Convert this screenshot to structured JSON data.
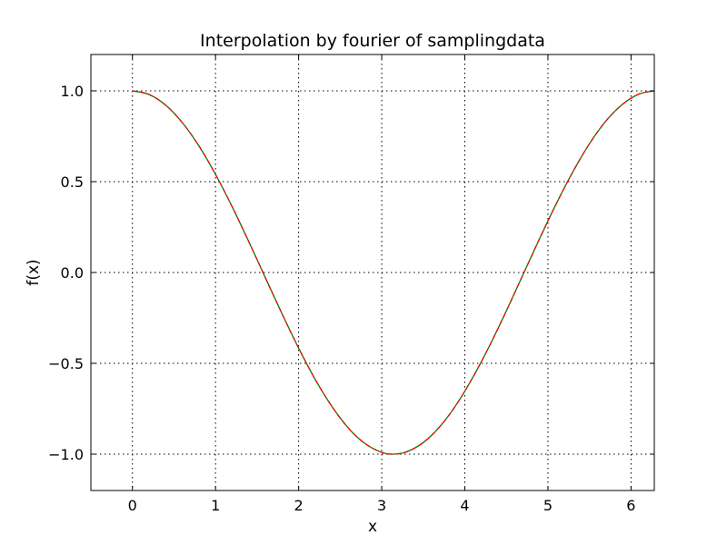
{
  "chart_data": {
    "type": "line",
    "title": "Interpolation by fourier of samplingdata",
    "xlabel": "x",
    "ylabel": "f(x)",
    "xlim": [
      -0.5,
      6.28
    ],
    "ylim": [
      -1.2,
      1.2
    ],
    "xticks": [
      0,
      1,
      2,
      3,
      4,
      5,
      6
    ],
    "xtick_labels": [
      "0",
      "1",
      "2",
      "3",
      "4",
      "5",
      "6"
    ],
    "yticks": [
      -1.0,
      -0.5,
      0.0,
      0.5,
      1.0
    ],
    "ytick_labels": [
      "−1.0",
      "−0.5",
      "0.0",
      "0.5",
      "1.0"
    ],
    "grid": true,
    "series": [
      {
        "color": "#007f00",
        "style": "solid",
        "x": [
          0.0,
          0.2,
          0.4,
          0.6,
          0.8,
          1.0,
          1.2,
          1.4,
          1.6,
          1.8,
          2.0,
          2.2,
          2.4,
          2.6,
          2.8,
          3.0,
          3.14,
          3.3,
          3.5,
          3.7,
          3.9,
          4.1,
          4.3,
          4.5,
          4.7,
          4.9,
          5.1,
          5.3,
          5.5,
          5.7,
          5.9,
          6.1,
          6.28
        ],
        "y": [
          1.0,
          0.98,
          0.921,
          0.825,
          0.697,
          0.54,
          0.362,
          0.17,
          -0.029,
          -0.227,
          -0.416,
          -0.589,
          -0.737,
          -0.857,
          -0.942,
          -0.99,
          -1.0,
          -0.987,
          -0.936,
          -0.848,
          -0.726,
          -0.574,
          -0.401,
          -0.211,
          -0.012,
          0.187,
          0.378,
          0.554,
          0.709,
          0.835,
          0.927,
          0.983,
          1.0
        ]
      },
      {
        "color": "#ff0000",
        "style": "dashed",
        "x": [
          0.0,
          0.2,
          0.4,
          0.6,
          0.8,
          1.0,
          1.2,
          1.4,
          1.6,
          1.8,
          2.0,
          2.2,
          2.4,
          2.6,
          2.8,
          3.0,
          3.14,
          3.3,
          3.5,
          3.7,
          3.9,
          4.1,
          4.3,
          4.5,
          4.7,
          4.9,
          5.1,
          5.3,
          5.5,
          5.7,
          5.9,
          6.1,
          6.28
        ],
        "y": [
          1.0,
          0.98,
          0.921,
          0.825,
          0.697,
          0.54,
          0.362,
          0.17,
          -0.029,
          -0.227,
          -0.416,
          -0.589,
          -0.737,
          -0.857,
          -0.942,
          -0.99,
          -1.0,
          -0.987,
          -0.936,
          -0.848,
          -0.726,
          -0.574,
          -0.401,
          -0.211,
          -0.012,
          0.187,
          0.378,
          0.554,
          0.709,
          0.835,
          0.927,
          0.983,
          1.0
        ]
      }
    ]
  }
}
